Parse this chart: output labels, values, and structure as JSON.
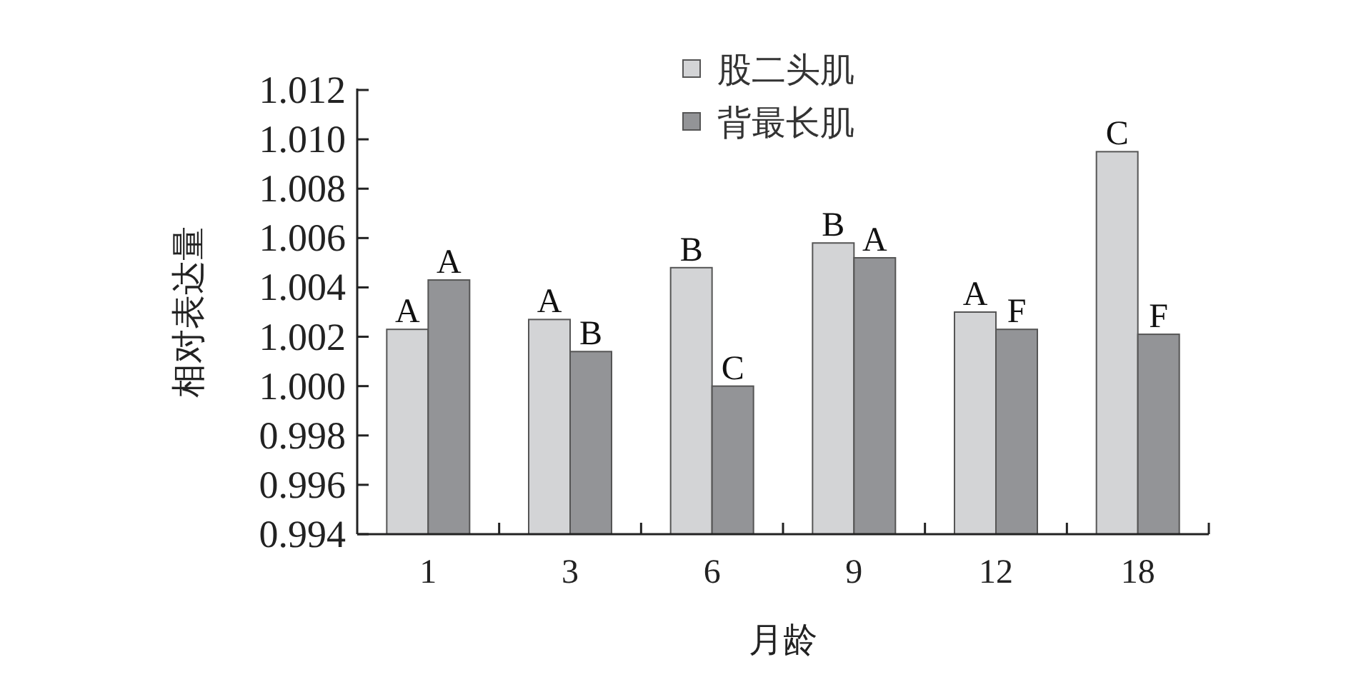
{
  "chart_data": {
    "type": "bar",
    "xlabel": "月龄",
    "ylabel": "相对表达量",
    "categories": [
      "1",
      "3",
      "6",
      "9",
      "12",
      "18"
    ],
    "series": [
      {
        "name": "股二头肌",
        "color": "#d3d4d6",
        "values": [
          1.0023,
          1.0027,
          1.0048,
          1.0058,
          1.003,
          1.0095
        ],
        "value_labels": [
          "A",
          "A",
          "B",
          "B",
          "A",
          "C"
        ]
      },
      {
        "name": "背最长肌",
        "color": "#939497",
        "values": [
          1.0043,
          1.0014,
          1.0,
          1.0052,
          1.0023,
          1.0021
        ],
        "value_labels": [
          "A",
          "B",
          "C",
          "A",
          "F",
          "F"
        ]
      }
    ],
    "ylim": [
      0.994,
      1.012
    ],
    "yticks": [
      {
        "value": 0.994,
        "label": "0.994"
      },
      {
        "value": 0.996,
        "label": "0.996"
      },
      {
        "value": 0.998,
        "label": "0.998"
      },
      {
        "value": 1.0,
        "label": "1.000"
      },
      {
        "value": 1.002,
        "label": "1.002"
      },
      {
        "value": 1.004,
        "label": "1.004"
      },
      {
        "value": 1.006,
        "label": "1.006"
      },
      {
        "value": 1.008,
        "label": "1.008"
      },
      {
        "value": 1.01,
        "label": "1.010"
      },
      {
        "value": 1.012,
        "label": "1.012"
      }
    ],
    "grid": false,
    "legend": "top"
  }
}
